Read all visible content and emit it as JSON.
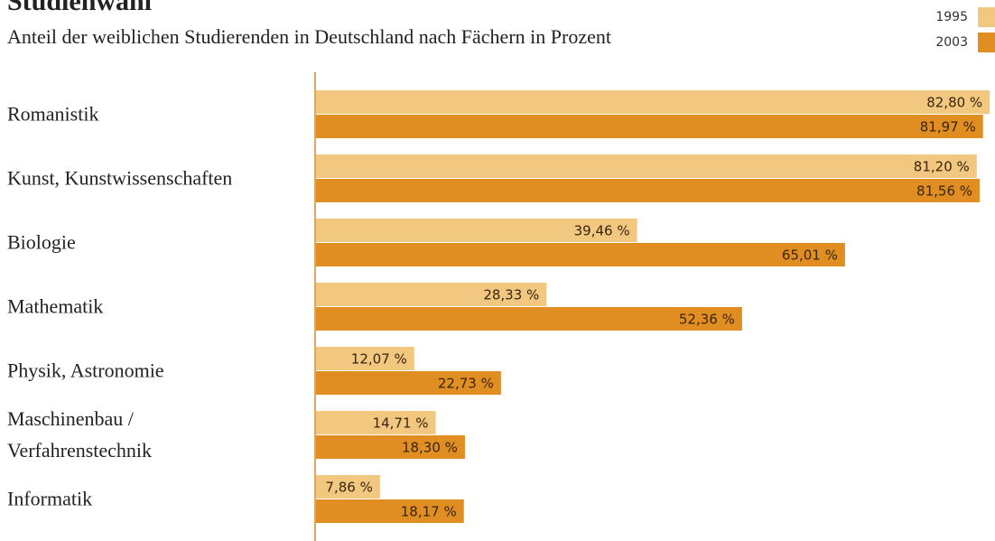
{
  "chart_data": {
    "type": "hbar",
    "title": "Studienwahl",
    "subtitle": "Anteil der weiblichen Studierenden in Deutschland nach Fächern in Prozent",
    "categories": [
      "Romanistik",
      "Kunst, Kunstwissenschaften",
      "Biologie",
      "Mathematik",
      "Physik, Astronomie",
      "Maschinenbau /\nVerfahrenstechnik",
      "Informatik"
    ],
    "series": [
      {
        "name": "1995",
        "color": "#f2c77f",
        "values": [
          82.8,
          81.2,
          39.46,
          28.33,
          12.07,
          14.71,
          7.86
        ],
        "value_labels": [
          "82,80 %",
          "81,20 %",
          "39,46 %",
          "28,33 %",
          "12,07 %",
          "14,71 %",
          "7,86 %"
        ]
      },
      {
        "name": "2003",
        "color": "#e08d22",
        "values": [
          81.97,
          81.56,
          65.01,
          52.36,
          22.73,
          18.3,
          18.17
        ],
        "value_labels": [
          "81,97 %",
          "81,56 %",
          "65,01 %",
          "52,36 %",
          "22,73 %",
          "18,30 %",
          "18,17 %"
        ]
      }
    ],
    "xlim": [
      0,
      83
    ]
  }
}
